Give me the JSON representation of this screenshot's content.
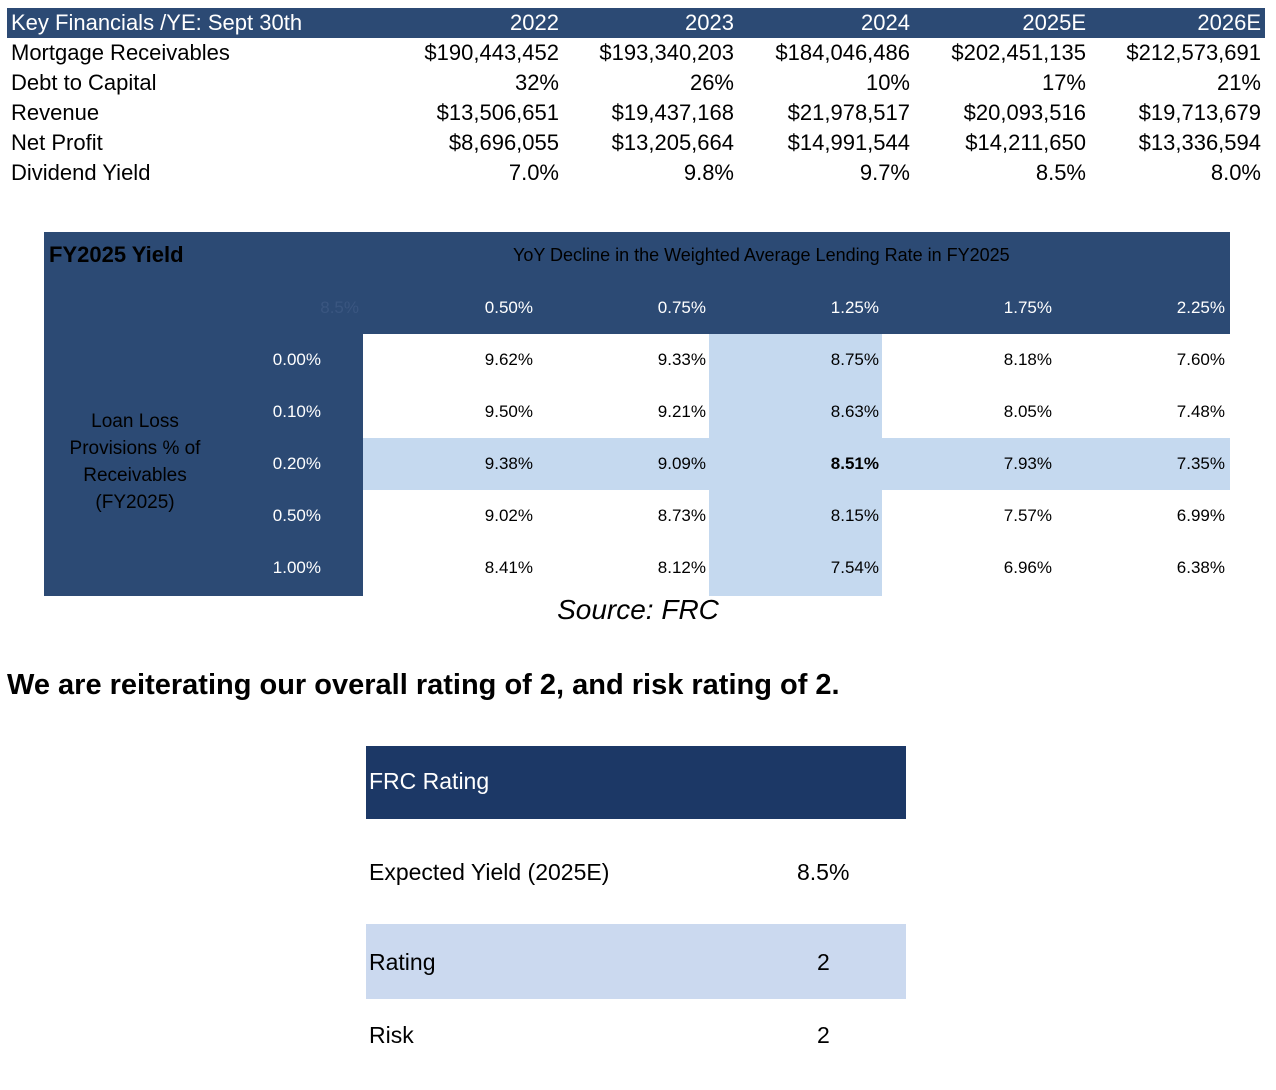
{
  "key_financials": {
    "header": [
      "Key Financials /YE: Sept 30th",
      "2022",
      "2023",
      "2024",
      "2025E",
      "2026E"
    ],
    "rows": [
      [
        "Mortgage Receivables",
        "$190,443,452",
        "$193,340,203",
        "$184,046,486",
        "$202,451,135",
        "$212,573,691"
      ],
      [
        "Debt to Capital",
        "32%",
        "26%",
        "10%",
        "17%",
        "21%"
      ],
      [
        "Revenue",
        "$13,506,651",
        "$19,437,168",
        "$21,978,517",
        "$20,093,516",
        "$19,713,679"
      ],
      [
        "Net Profit",
        "$8,696,055",
        "$13,205,664",
        "$14,991,544",
        "$14,211,650",
        "$13,336,594"
      ],
      [
        "Dividend Yield",
        "7.0%",
        "9.8%",
        "9.7%",
        "8.5%",
        "8.0%"
      ]
    ]
  },
  "sensitivity": {
    "title": "FY2025 Yield",
    "subtitle": "YoY Decline in the Weighted Average Lending Rate in FY2025",
    "corner": "8.5%",
    "columns": [
      "0.50%",
      "0.75%",
      "1.25%",
      "1.75%",
      "2.25%"
    ],
    "row_axis_label": [
      "Loan Loss",
      "Provisions % of",
      "Receivables",
      "(FY2025)"
    ],
    "rows": [
      {
        "label": "0.00%",
        "values": [
          "9.62%",
          "9.33%",
          "8.75%",
          "8.18%",
          "7.60%"
        ]
      },
      {
        "label": "0.10%",
        "values": [
          "9.50%",
          "9.21%",
          "8.63%",
          "8.05%",
          "7.48%"
        ]
      },
      {
        "label": "0.20%",
        "values": [
          "9.38%",
          "9.09%",
          "8.51%",
          "7.93%",
          "7.35%"
        ]
      },
      {
        "label": "0.50%",
        "values": [
          "9.02%",
          "8.73%",
          "8.15%",
          "7.57%",
          "6.99%"
        ]
      },
      {
        "label": "1.00%",
        "values": [
          "8.41%",
          "8.12%",
          "7.54%",
          "6.96%",
          "6.38%"
        ]
      }
    ],
    "colors": {
      "dark": "#2c4a74",
      "highlight": "#c5d9ef"
    }
  },
  "source": "Source: FRC",
  "statement": "We are reiterating our overall rating of 2, and risk rating of 2.",
  "frc_rating": {
    "title": "FRC Rating",
    "rows": [
      {
        "label": "Expected Yield  (2025E)",
        "value": "8.5%"
      },
      {
        "label": "Rating",
        "value": "2"
      },
      {
        "label": "Risk",
        "value": "2"
      }
    ],
    "colors": {
      "header": "#1c3866",
      "band": "#cbd9ef"
    }
  }
}
